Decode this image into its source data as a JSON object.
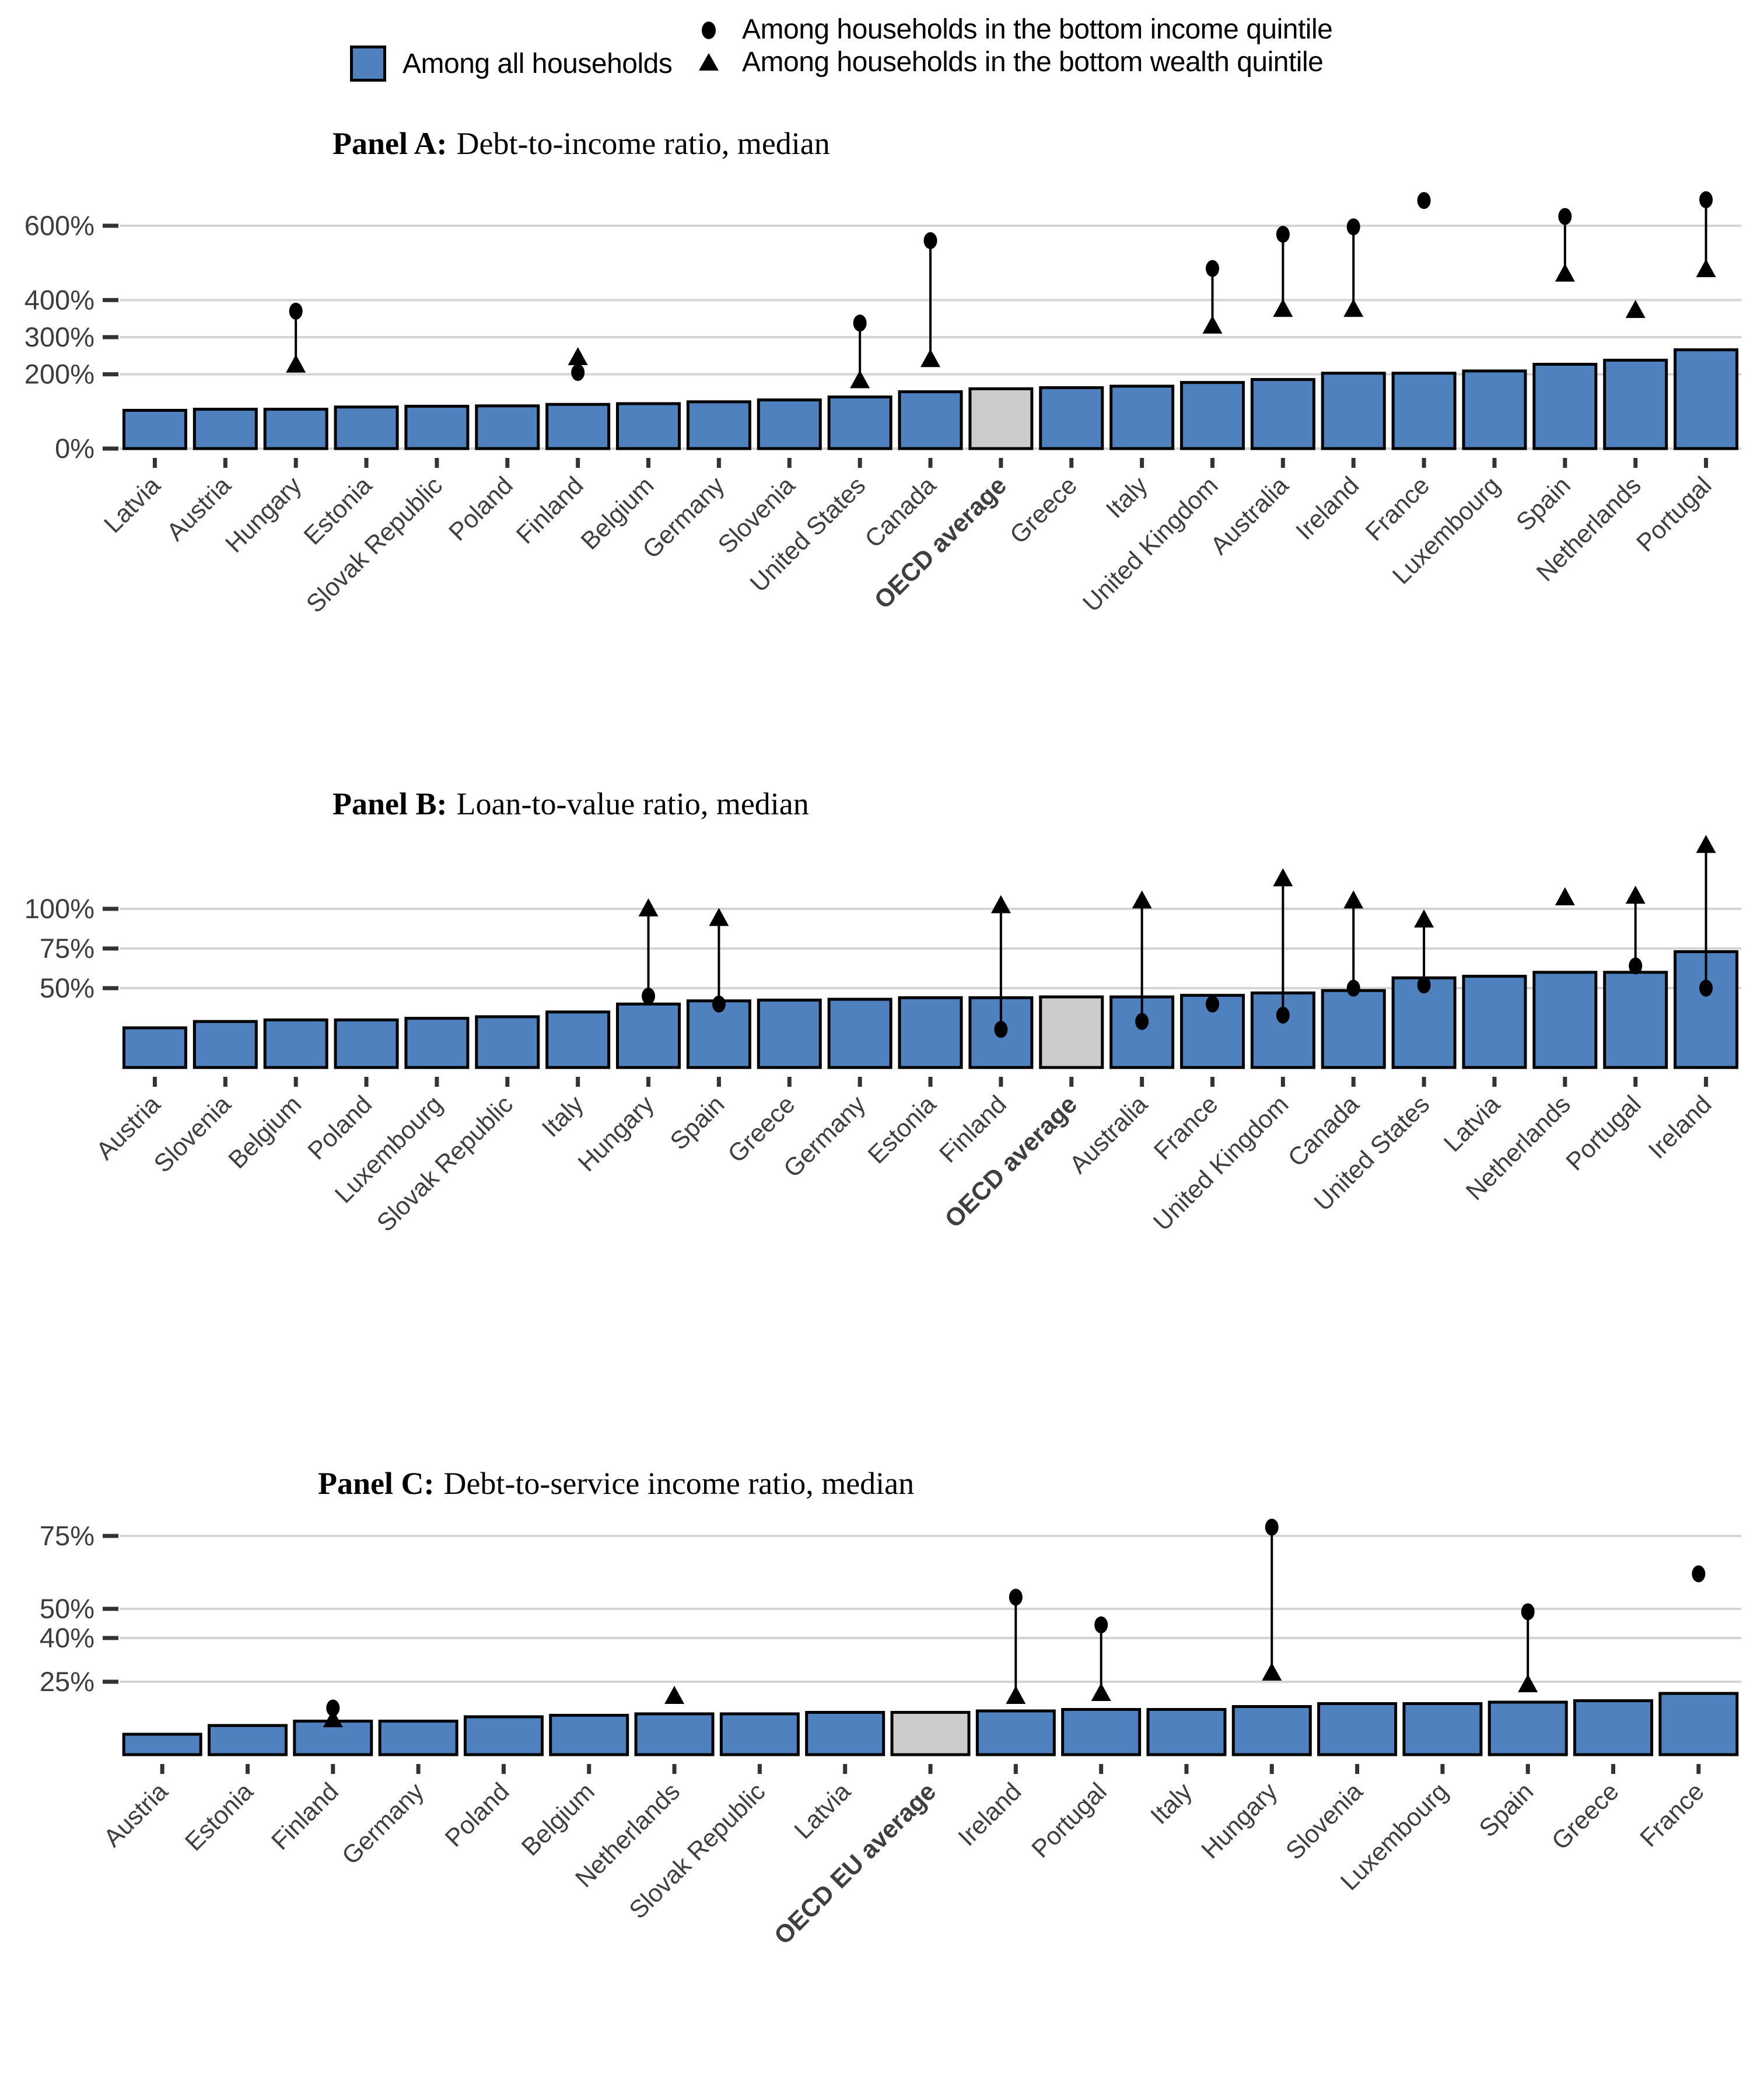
{
  "legend": {
    "all_households": "Among all households",
    "income_quintile": "Among households in the bottom income quintile",
    "wealth_quintile": "Among households in the bottom wealth quintile"
  },
  "colors": {
    "bar_blue": "#4E81BD",
    "bar_gray": "#CBCBCB",
    "marker_black": "#000000",
    "gridline_gray": "#D4D4D4",
    "axis_text_gray": "#3D3D3D"
  },
  "chart_data": [
    {
      "type": "bar",
      "panel_label": "Panel A:",
      "title": "Debt-to-income ratio, median",
      "unit": "%",
      "y_ticks": [
        0,
        200,
        300,
        400,
        600
      ],
      "ylim": [
        0,
        700
      ],
      "grid": true,
      "legend_position": "top",
      "highlight": "OECD average",
      "categories": [
        "Latvia",
        "Austria",
        "Hungary",
        "Estonia",
        "Slovak Republic",
        "Poland",
        "Finland",
        "Belgium",
        "Germany",
        "Slovenia",
        "United States",
        "Canada",
        "OECD average",
        "Greece",
        "Italy",
        "United Kingdom",
        "Australia",
        "Ireland",
        "France",
        "Luxembourg",
        "Spain",
        "Netherlands",
        "Portugal"
      ],
      "series": [
        {
          "name": "Among all households",
          "type": "bar",
          "values": [
            103,
            106,
            106,
            112,
            114,
            115,
            119,
            121,
            126,
            131,
            139,
            153,
            161,
            164,
            168,
            178,
            186,
            203,
            203,
            209,
            227,
            238,
            266
          ]
        },
        {
          "name": "Among households in the bottom income quintile",
          "type": "point-circle",
          "values": [
            null,
            null,
            370,
            null,
            null,
            null,
            205,
            null,
            null,
            null,
            338,
            560,
            null,
            null,
            null,
            485,
            577,
            597,
            668,
            null,
            625,
            null,
            670
          ]
        },
        {
          "name": "Among households in the bottom wealth quintile",
          "type": "point-triangle",
          "values": [
            null,
            null,
            225,
            null,
            null,
            null,
            245,
            null,
            null,
            null,
            183,
            240,
            null,
            null,
            null,
            330,
            375,
            375,
            null,
            null,
            470,
            372,
            482
          ]
        }
      ]
    },
    {
      "type": "bar",
      "panel_label": "Panel B:",
      "title": "Loan-to-value ratio, median",
      "unit": "%",
      "y_ticks": [
        50,
        75,
        100
      ],
      "ylim": [
        0,
        145
      ],
      "grid": true,
      "legend_position": "top",
      "highlight": "OECD average",
      "categories": [
        "Austria",
        "Slovenia",
        "Belgium",
        "Poland",
        "Luxembourg",
        "Slovak Republic",
        "Italy",
        "Hungary",
        "Spain",
        "Greece",
        "Germany",
        "Estonia",
        "Finland",
        "OECD average",
        "Australia",
        "France",
        "United Kingdom",
        "Canada",
        "United States",
        "Latvia",
        "Netherlands",
        "Portugal",
        "Ireland"
      ],
      "series": [
        {
          "name": "Among all households",
          "type": "bar",
          "values": [
            25,
            29,
            30,
            30,
            31,
            32,
            35,
            40,
            42,
            42.5,
            43,
            44,
            44,
            44.5,
            44.5,
            45.5,
            47,
            48.5,
            56.5,
            57.5,
            60,
            60,
            73
          ]
        },
        {
          "name": "Among households in the bottom income quintile",
          "type": "point-circle",
          "values": [
            null,
            null,
            null,
            null,
            null,
            null,
            null,
            45,
            40,
            null,
            null,
            null,
            24,
            null,
            29,
            40,
            33,
            50,
            52,
            null,
            null,
            64,
            50
          ]
        },
        {
          "name": "Among households in the bottom wealth quintile",
          "type": "point-triangle",
          "values": [
            null,
            null,
            null,
            null,
            null,
            null,
            null,
            100,
            94,
            null,
            null,
            null,
            102,
            null,
            105,
            null,
            119,
            105,
            93,
            null,
            107,
            108,
            140
          ]
        }
      ]
    },
    {
      "type": "bar",
      "panel_label": "Panel C:",
      "title": "Debt-to-service income ratio, median",
      "unit": "%",
      "y_ticks": [
        25,
        40,
        50,
        75
      ],
      "ylim": [
        0,
        82
      ],
      "grid": true,
      "legend_position": "top",
      "highlight": "OECD EU average",
      "categories": [
        "Austria",
        "Estonia",
        "Finland",
        "Germany",
        "Poland",
        "Belgium",
        "Netherlands",
        "Slovak Republic",
        "Latvia",
        "OECD EU average",
        "Ireland",
        "Portugal",
        "Italy",
        "Hungary",
        "Slovenia",
        "Luxembourg",
        "Spain",
        "Greece",
        "France"
      ],
      "series": [
        {
          "name": "Among all households",
          "type": "bar",
          "values": [
            7,
            10,
            11.5,
            11.5,
            13,
            13.5,
            14,
            14,
            14.5,
            14.5,
            15,
            15.5,
            15.5,
            16.5,
            17.5,
            17.5,
            18,
            18.5,
            21
          ]
        },
        {
          "name": "Among households in the bottom income quintile",
          "type": "point-circle",
          "values": [
            null,
            null,
            16,
            null,
            null,
            null,
            null,
            null,
            null,
            null,
            54,
            44.5,
            null,
            78,
            null,
            null,
            49,
            null,
            62
          ]
        },
        {
          "name": "Among households in the bottom wealth quintile",
          "type": "point-triangle",
          "values": [
            null,
            null,
            12,
            null,
            null,
            null,
            20,
            null,
            null,
            null,
            20,
            21,
            null,
            28,
            null,
            null,
            24,
            null,
            null
          ]
        }
      ]
    }
  ]
}
